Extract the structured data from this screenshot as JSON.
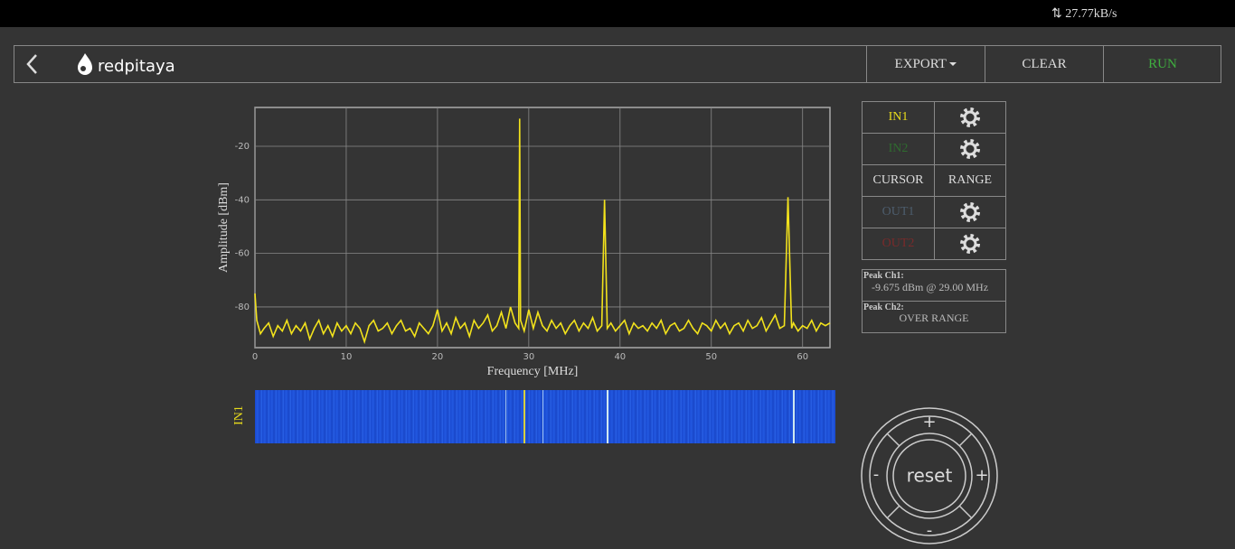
{
  "status_bar": {
    "speed": "27.77kB/s"
  },
  "header": {
    "logo": "redpitaya",
    "buttons": [
      "EXPORT",
      "CLEAR",
      "RUN"
    ]
  },
  "chart_data": {
    "type": "line",
    "x_label": "Frequency [MHz]",
    "y_label": "Amplitude [dBm]",
    "color": "#f2e21c",
    "grid": true,
    "xlim": [
      0,
      63
    ],
    "ylim": [
      -95.2,
      -5.5
    ],
    "xticks": [
      0,
      10,
      20,
      30,
      40,
      50,
      60
    ],
    "yticks": [
      -20,
      -40,
      -60,
      -80
    ],
    "x": [
      0,
      0.2,
      0.6,
      1,
      1.5,
      2,
      2.5,
      3,
      3.5,
      4,
      4.5,
      5,
      5.5,
      6,
      6.5,
      7,
      7.5,
      8,
      8.5,
      9,
      9.5,
      10,
      10.5,
      11,
      11.5,
      12,
      12.5,
      13,
      13.5,
      14,
      14.5,
      15,
      15.5,
      16,
      16.5,
      17,
      17.5,
      18,
      18.5,
      19,
      19.5,
      20,
      20.5,
      21,
      21.5,
      22,
      22.5,
      23,
      23.5,
      24,
      24.5,
      25,
      25.5,
      26,
      26.5,
      27,
      27.5,
      28,
      28.5,
      28.9,
      29,
      29.1,
      29.5,
      30,
      30.5,
      31,
      31.5,
      32,
      32.5,
      33,
      33.5,
      34,
      34.5,
      35,
      35.5,
      36,
      36.5,
      37,
      37.5,
      38,
      38.3,
      38.6,
      39,
      39.5,
      40,
      40.5,
      41,
      41.5,
      42,
      42.5,
      43,
      43.5,
      44,
      44.5,
      45,
      45.5,
      46,
      46.5,
      47,
      47.5,
      48,
      48.5,
      49,
      49.5,
      50,
      50.5,
      51,
      51.5,
      52,
      52.5,
      53,
      53.5,
      54,
      54.5,
      55,
      55.5,
      56,
      56.5,
      57,
      57.5,
      58,
      58.4,
      58.8,
      59,
      59.5,
      60,
      60.5,
      61,
      61.5,
      62,
      62.5,
      63
    ],
    "values": [
      -75,
      -85,
      -90,
      -88,
      -86,
      -91,
      -87,
      -89,
      -85,
      -90,
      -87,
      -89,
      -86,
      -92,
      -88,
      -85,
      -90,
      -87,
      -91,
      -86,
      -89,
      -87,
      -90,
      -86,
      -88,
      -93,
      -87,
      -85,
      -89,
      -88,
      -86,
      -90,
      -87,
      -85,
      -89,
      -88,
      -91,
      -86,
      -88,
      -90,
      -87,
      -81,
      -89,
      -86,
      -90,
      -84,
      -88,
      -86,
      -91,
      -85,
      -88,
      -86,
      -83,
      -89,
      -87,
      -82,
      -88,
      -80,
      -86,
      -88,
      -9.675,
      -85,
      -89,
      -81,
      -88,
      -82,
      -87,
      -89,
      -85,
      -88,
      -86,
      -90,
      -87,
      -85,
      -89,
      -86,
      -88,
      -84,
      -89,
      -87,
      -40,
      -88,
      -86,
      -89,
      -87,
      -85,
      -90,
      -86,
      -88,
      -87,
      -89,
      -86,
      -88,
      -85,
      -90,
      -87,
      -86,
      -89,
      -88,
      -85,
      -88,
      -90,
      -86,
      -87,
      -89,
      -85,
      -88,
      -86,
      -90,
      -87,
      -86,
      -89,
      -85,
      -88,
      -87,
      -84,
      -89,
      -86,
      -83,
      -88,
      -87,
      -39,
      -88,
      -86,
      -89,
      -87,
      -88,
      -85,
      -89,
      -86,
      -87,
      -86
    ]
  },
  "waterfall": {
    "label": "IN1"
  },
  "channels": {
    "in1": "IN1",
    "in2": "IN2",
    "cursor": "CURSOR",
    "range": "RANGE",
    "out1": "OUT1",
    "out2": "OUT2"
  },
  "peaks": [
    {
      "label": "Peak Ch1:",
      "value": "-9.675 dBm @ 29.00 MHz"
    },
    {
      "label": "Peak Ch2:",
      "value": "OVER RANGE"
    }
  ],
  "zoom_controls": {
    "up": "+",
    "left": "-",
    "center": "reset",
    "right": "+",
    "down": "-"
  }
}
